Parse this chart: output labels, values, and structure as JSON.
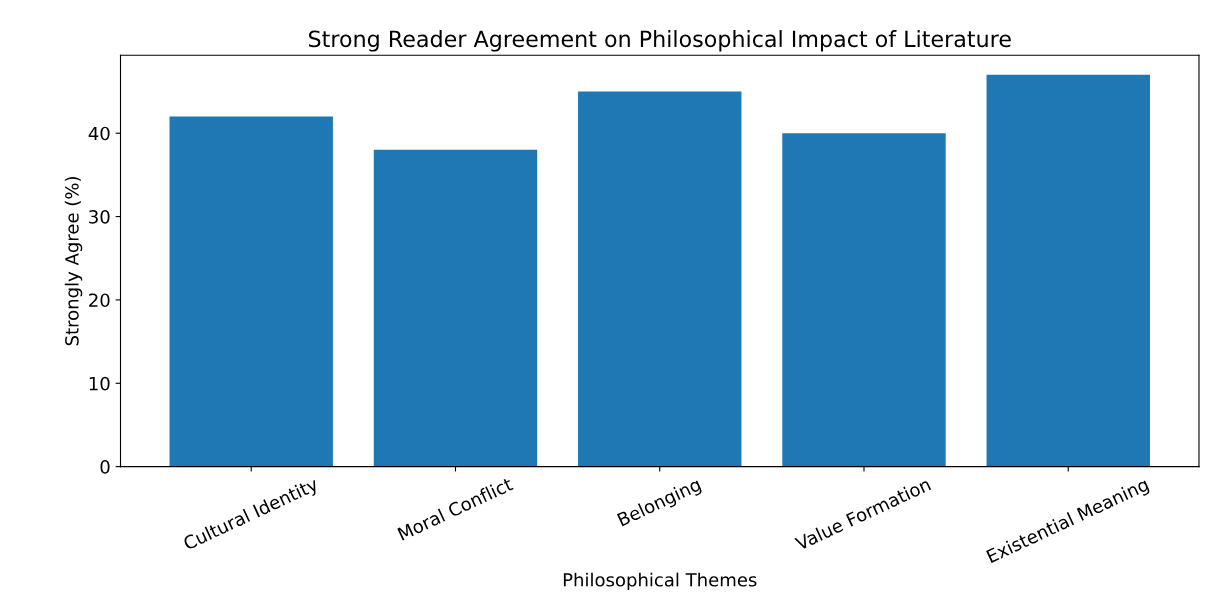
{
  "chart_data": {
    "type": "bar",
    "title": "Strong Reader Agreement on Philosophical Impact of Literature",
    "xlabel": "Philosophical Themes",
    "ylabel": "Strongly Agree (%)",
    "categories": [
      "Cultural Identity",
      "Moral Conflict",
      "Belonging",
      "Value Formation",
      "Existential Meaning"
    ],
    "values": [
      42,
      38,
      45,
      40,
      47
    ],
    "color": "#1f77b4",
    "ylim": [
      0,
      49.35
    ],
    "yticks": [
      0,
      10,
      20,
      30,
      40
    ],
    "grid": false,
    "legend": false
  }
}
